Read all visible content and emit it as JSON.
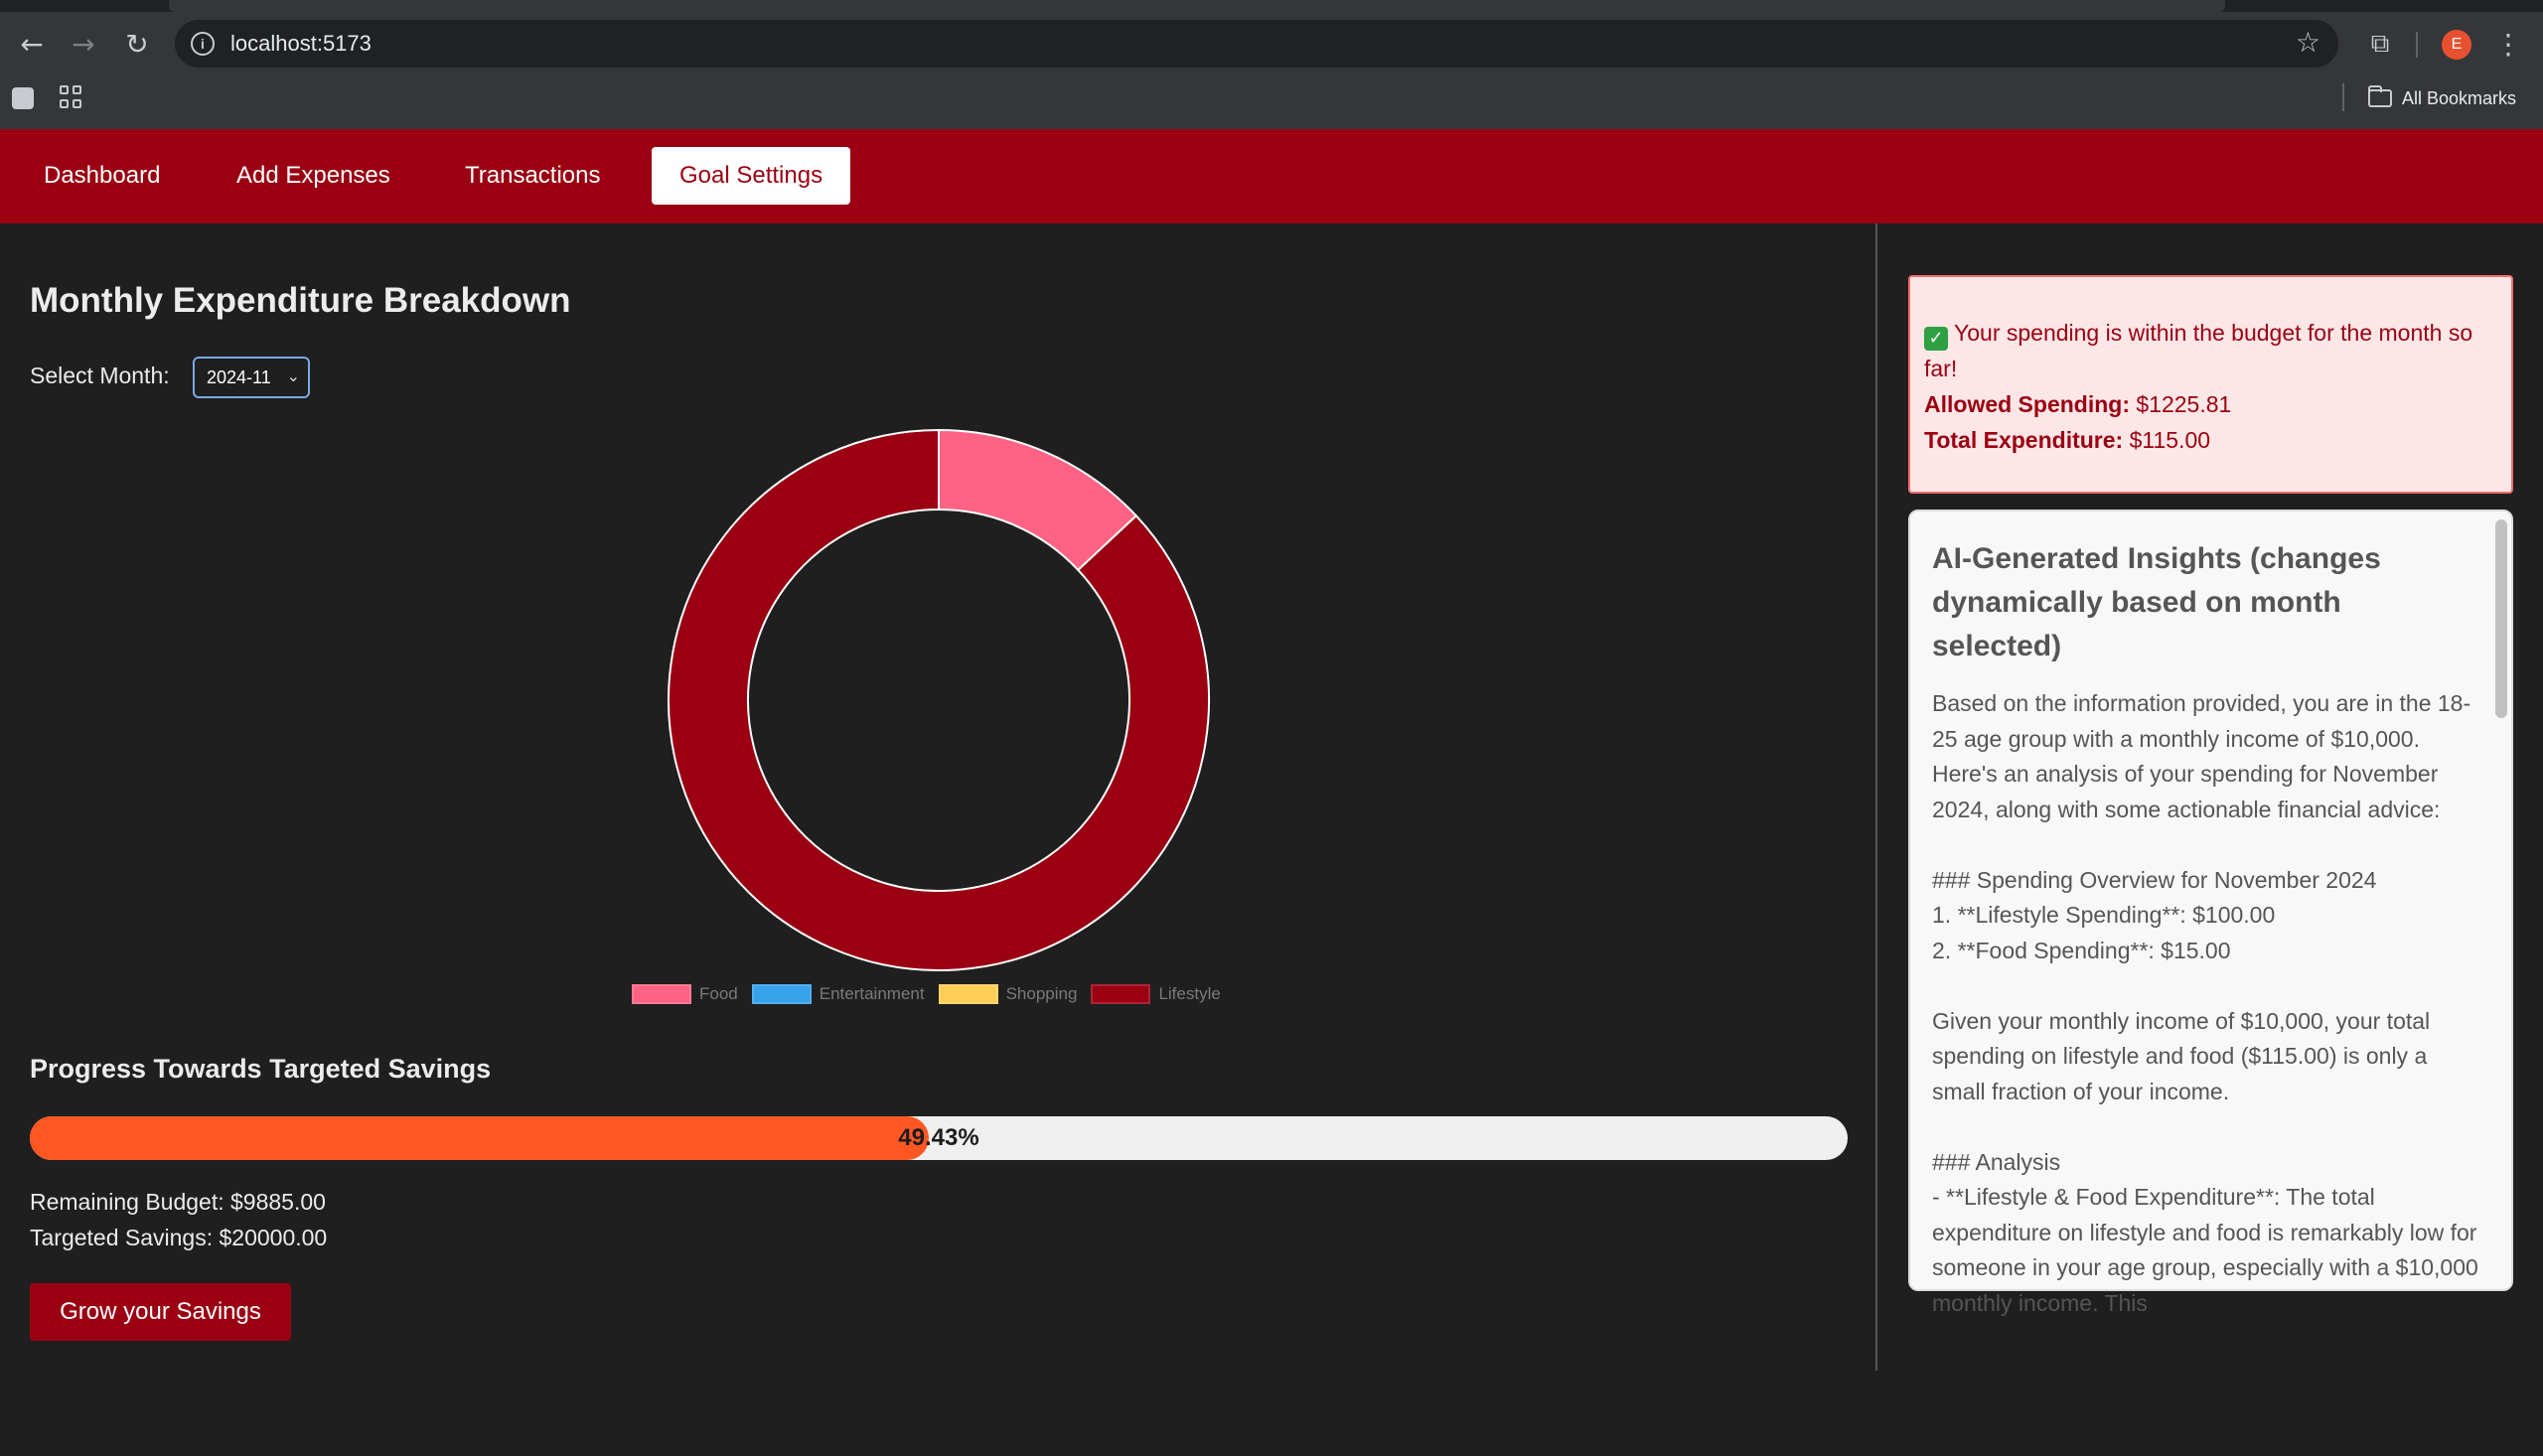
{
  "browser": {
    "url": "localhost:5173",
    "profile_initial": "E",
    "bookmarks_label": "All Bookmarks"
  },
  "nav": {
    "items": [
      {
        "label": "Dashboard"
      },
      {
        "label": "Add Expenses"
      },
      {
        "label": "Transactions"
      },
      {
        "label": "Goal Settings",
        "active": true
      }
    ]
  },
  "main": {
    "title": "Monthly Expenditure Breakdown",
    "month_label": "Select Month:",
    "month_value": "2024-11",
    "savings_title": "Progress Towards Targeted Savings",
    "progress_label": "49.43%",
    "progress_value": 0.4943,
    "remaining_budget": "Remaining Budget: $9885.00",
    "targeted_savings": "Targeted Savings: $20000.00",
    "grow_button": "Grow your Savings"
  },
  "chart_data": {
    "type": "pie",
    "categories": [
      "Food",
      "Entertainment",
      "Shopping",
      "Lifestyle"
    ],
    "values": [
      15,
      0,
      0,
      100
    ],
    "colors": [
      "#ff6384",
      "#36a2eb",
      "#ffce56",
      "#9a0012"
    ]
  },
  "budget": {
    "status_icon": "check-icon",
    "message": "Your spending is within the budget for the month so far!",
    "allowed_label": "Allowed Spending:",
    "allowed_value": "$1225.81",
    "total_label": "Total Expenditure:",
    "total_value": "$115.00"
  },
  "insights": {
    "title": "AI-Generated Insights (changes dynamically based on month selected)",
    "body": "Based on the information provided, you are in the 18-25 age group with a monthly income of $10,000. Here's an analysis of your spending for November 2024, along with some actionable financial advice:\n\n### Spending Overview for November 2024\n1. **Lifestyle Spending**: $100.00\n2. **Food Spending**: $15.00\n\nGiven your monthly income of $10,000, your total spending on lifestyle and food ($115.00) is only a small fraction of your income.\n\n### Analysis\n- **Lifestyle & Food Expenditure**: The total expenditure on lifestyle and food is remarkably low for someone in your age group, especially with a $10,000 monthly income. This"
  },
  "colors": {
    "accent": "#9a0012",
    "progress": "#ff5722",
    "alert_bg": "#fde6e6",
    "alert_border": "#ff6b6b"
  }
}
